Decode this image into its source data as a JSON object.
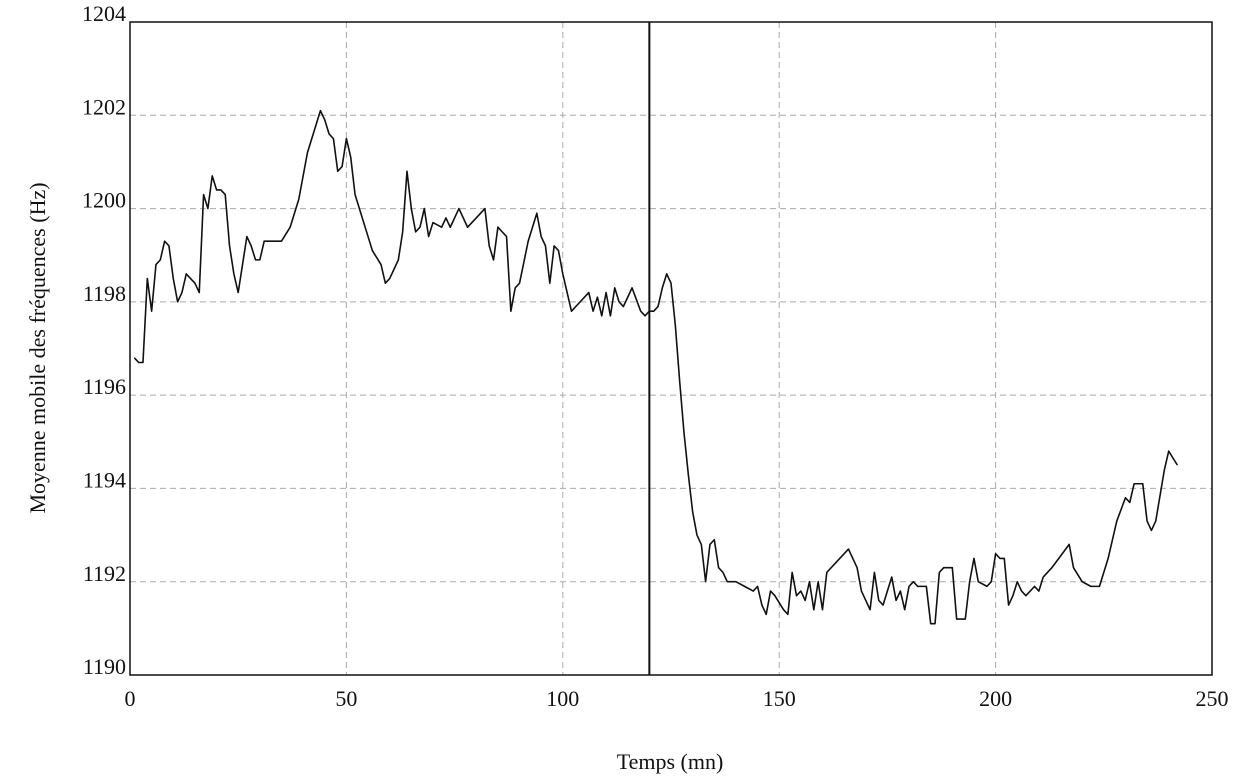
{
  "chart_data": {
    "type": "line",
    "x_label": "Temps (mn)",
    "y_label": "Moyenne mobile des fréquences (Hz)",
    "xlim": [
      0,
      250
    ],
    "xticks": [
      0,
      50,
      100,
      150,
      200,
      250
    ],
    "ylim": [
      1190,
      1204
    ],
    "yticks": [
      1190,
      1192,
      1194,
      1196,
      1198,
      1200,
      1202,
      1204
    ],
    "grid": true,
    "color": "#111111",
    "vline": 120,
    "x": [
      1,
      2,
      3,
      4,
      5,
      6,
      7,
      8,
      9,
      10,
      11,
      12,
      13,
      14,
      15,
      16,
      17,
      18,
      19,
      20,
      21,
      22,
      23,
      24,
      25,
      26,
      27,
      28,
      29,
      30,
      31,
      33,
      35,
      37,
      39,
      41,
      43,
      44,
      45,
      46,
      47,
      48,
      49,
      50,
      51,
      52,
      54,
      56,
      58,
      59,
      60,
      62,
      63,
      64,
      65,
      66,
      67,
      68,
      69,
      70,
      72,
      73,
      74,
      76,
      78,
      80,
      82,
      83,
      84,
      85,
      86,
      87,
      88,
      89,
      90,
      92,
      94,
      95,
      96,
      97,
      98,
      99,
      100,
      101,
      102,
      104,
      106,
      107,
      108,
      109,
      110,
      111,
      112,
      113,
      114,
      116,
      118,
      119,
      120,
      121,
      122,
      123,
      124,
      125,
      126,
      127,
      128,
      129,
      130,
      131,
      132,
      133,
      134,
      135,
      136,
      137,
      138,
      140,
      142,
      144,
      145,
      146,
      147,
      148,
      149,
      151,
      152,
      153,
      154,
      155,
      156,
      157,
      158,
      159,
      160,
      161,
      163,
      166,
      168,
      169,
      171,
      172,
      173,
      174,
      176,
      177,
      178,
      179,
      180,
      181,
      182,
      184,
      185,
      186,
      187,
      188,
      190,
      191,
      193,
      194,
      195,
      196,
      198,
      199,
      200,
      201,
      202,
      203,
      204,
      205,
      206,
      207,
      209,
      210,
      211,
      213,
      217,
      218,
      220,
      222,
      224,
      226,
      228,
      230,
      231,
      232,
      234,
      235,
      236,
      237,
      239,
      240,
      242
    ],
    "values": [
      1196.8,
      1196.7,
      1196.7,
      1198.5,
      1197.8,
      1198.8,
      1198.9,
      1199.3,
      1199.2,
      1198.5,
      1198.0,
      1198.2,
      1198.6,
      1198.5,
      1198.4,
      1198.2,
      1200.3,
      1200.0,
      1200.7,
      1200.4,
      1200.4,
      1200.3,
      1199.2,
      1198.6,
      1198.2,
      1198.8,
      1199.4,
      1199.2,
      1198.9,
      1198.9,
      1199.3,
      1199.3,
      1199.3,
      1199.6,
      1200.2,
      1201.2,
      1201.8,
      1202.1,
      1201.9,
      1201.6,
      1201.5,
      1200.8,
      1200.9,
      1201.5,
      1201.1,
      1200.3,
      1199.7,
      1199.1,
      1198.8,
      1198.4,
      1198.5,
      1198.9,
      1199.5,
      1200.8,
      1200.0,
      1199.5,
      1199.6,
      1200.0,
      1199.4,
      1199.7,
      1199.6,
      1199.8,
      1199.6,
      1200.0,
      1199.6,
      1199.8,
      1200.0,
      1199.2,
      1198.9,
      1199.6,
      1199.5,
      1199.4,
      1197.8,
      1198.3,
      1198.4,
      1199.3,
      1199.9,
      1199.4,
      1199.2,
      1198.4,
      1199.2,
      1199.1,
      1198.6,
      1198.2,
      1197.8,
      1198.0,
      1198.2,
      1197.8,
      1198.1,
      1197.7,
      1198.2,
      1197.7,
      1198.3,
      1198.0,
      1197.9,
      1198.3,
      1197.8,
      1197.7,
      1197.8,
      1197.8,
      1197.9,
      1198.3,
      1198.6,
      1198.4,
      1197.5,
      1196.3,
      1195.2,
      1194.3,
      1193.5,
      1193.0,
      1192.8,
      1192.0,
      1192.8,
      1192.9,
      1192.3,
      1192.2,
      1192.0,
      1192.0,
      1191.9,
      1191.8,
      1191.9,
      1191.5,
      1191.3,
      1191.8,
      1191.7,
      1191.4,
      1191.3,
      1192.2,
      1191.7,
      1191.8,
      1191.6,
      1192.0,
      1191.4,
      1192.0,
      1191.4,
      1192.2,
      1192.4,
      1192.7,
      1192.3,
      1191.8,
      1191.4,
      1192.2,
      1191.6,
      1191.5,
      1192.1,
      1191.6,
      1191.8,
      1191.4,
      1191.9,
      1192.0,
      1191.9,
      1191.9,
      1191.1,
      1191.1,
      1192.2,
      1192.3,
      1192.3,
      1191.2,
      1191.2,
      1192.0,
      1192.5,
      1192.0,
      1191.9,
      1192.0,
      1192.6,
      1192.5,
      1192.5,
      1191.5,
      1191.7,
      1192.0,
      1191.8,
      1191.7,
      1191.9,
      1191.8,
      1192.1,
      1192.3,
      1192.8,
      1192.3,
      1192.0,
      1191.9,
      1191.9,
      1192.5,
      1193.3,
      1193.8,
      1193.7,
      1194.1,
      1194.1,
      1193.3,
      1193.1,
      1193.3,
      1194.4,
      1194.8,
      1194.5
    ]
  }
}
